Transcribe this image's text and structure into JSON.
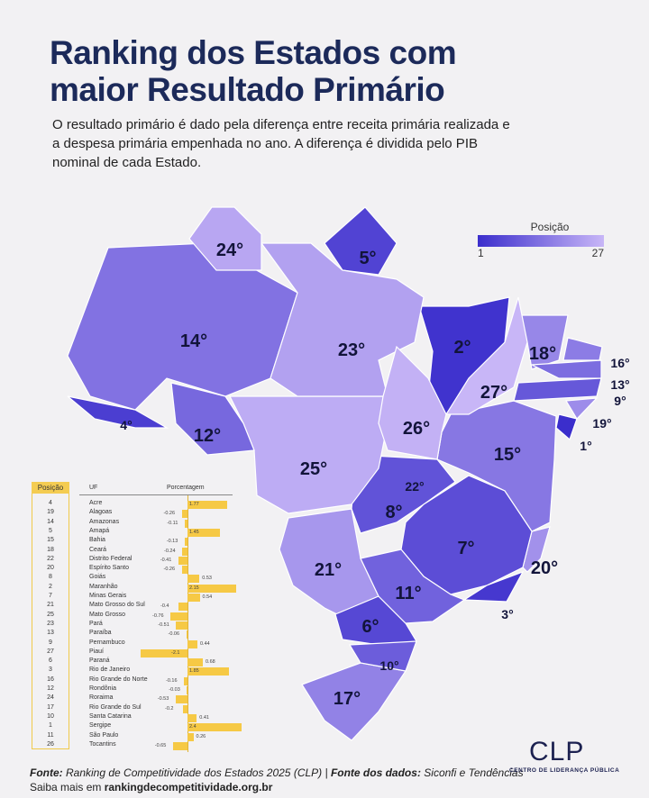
{
  "title_line1": "Ranking dos Estados com",
  "title_line2": "maior Resultado Primário",
  "subtitle": "O resultado primário é dado pela diferença entre receita primária realizada e a despesa primária empenhada no ano. A diferença é dividida pelo PIB nominal de cada Estado.",
  "legend": {
    "title": "Posição",
    "min": "1",
    "max": "27",
    "color_min": "#3b2ecc",
    "color_max": "#c8b6f7"
  },
  "chart_data": {
    "type": "table",
    "columns": [
      "Posição",
      "UF",
      "Porcentagem"
    ],
    "rows": [
      {
        "rank": 4,
        "uf": "Acre",
        "value": 1.77
      },
      {
        "rank": 19,
        "uf": "Alagoas",
        "value": -0.26
      },
      {
        "rank": 14,
        "uf": "Amazonas",
        "value": -0.11
      },
      {
        "rank": 5,
        "uf": "Amapá",
        "value": 1.45
      },
      {
        "rank": 15,
        "uf": "Bahia",
        "value": -0.13
      },
      {
        "rank": 18,
        "uf": "Ceará",
        "value": -0.24
      },
      {
        "rank": 22,
        "uf": "Distrito Federal",
        "value": -0.41
      },
      {
        "rank": 20,
        "uf": "Espírito Santo",
        "value": -0.26
      },
      {
        "rank": 8,
        "uf": "Goiás",
        "value": 0.53
      },
      {
        "rank": 2,
        "uf": "Maranhão",
        "value": 2.15
      },
      {
        "rank": 7,
        "uf": "Minas Gerais",
        "value": 0.54
      },
      {
        "rank": 21,
        "uf": "Mato Grosso do Sul",
        "value": -0.4
      },
      {
        "rank": 25,
        "uf": "Mato Grosso",
        "value": -0.76
      },
      {
        "rank": 23,
        "uf": "Pará",
        "value": -0.51
      },
      {
        "rank": 13,
        "uf": "Paraíba",
        "value": -0.06
      },
      {
        "rank": 9,
        "uf": "Pernambuco",
        "value": 0.44
      },
      {
        "rank": 27,
        "uf": "Piauí",
        "value": -2.1
      },
      {
        "rank": 6,
        "uf": "Paraná",
        "value": 0.68
      },
      {
        "rank": 3,
        "uf": "Rio de Janeiro",
        "value": 1.85
      },
      {
        "rank": 16,
        "uf": "Rio Grande do Norte",
        "value": -0.16
      },
      {
        "rank": 12,
        "uf": "Rondônia",
        "value": -0.03
      },
      {
        "rank": 24,
        "uf": "Roraima",
        "value": -0.53
      },
      {
        "rank": 17,
        "uf": "Rio Grande do Sul",
        "value": -0.2
      },
      {
        "rank": 10,
        "uf": "Santa Catarina",
        "value": 0.41
      },
      {
        "rank": 1,
        "uf": "Sergipe",
        "value": 2.4
      },
      {
        "rank": 11,
        "uf": "São Paulo",
        "value": 0.26
      },
      {
        "rank": 26,
        "uf": "Tocantins",
        "value": -0.65
      }
    ],
    "map_label_suffix": "°"
  },
  "footer": {
    "source_label": "Fonte:",
    "source_text": " Ranking de Competitividade dos Estados 2025 (CLP) | ",
    "data_label": "Fonte dos dados:",
    "data_text": " Siconfi e Tendências",
    "more_text": "Saiba mais em ",
    "more_link": "rankingdecompetitividade.org.br"
  },
  "logo": {
    "text": "CLP",
    "subtitle": "CENTRO DE LIDERANÇA PÚBLICA"
  }
}
